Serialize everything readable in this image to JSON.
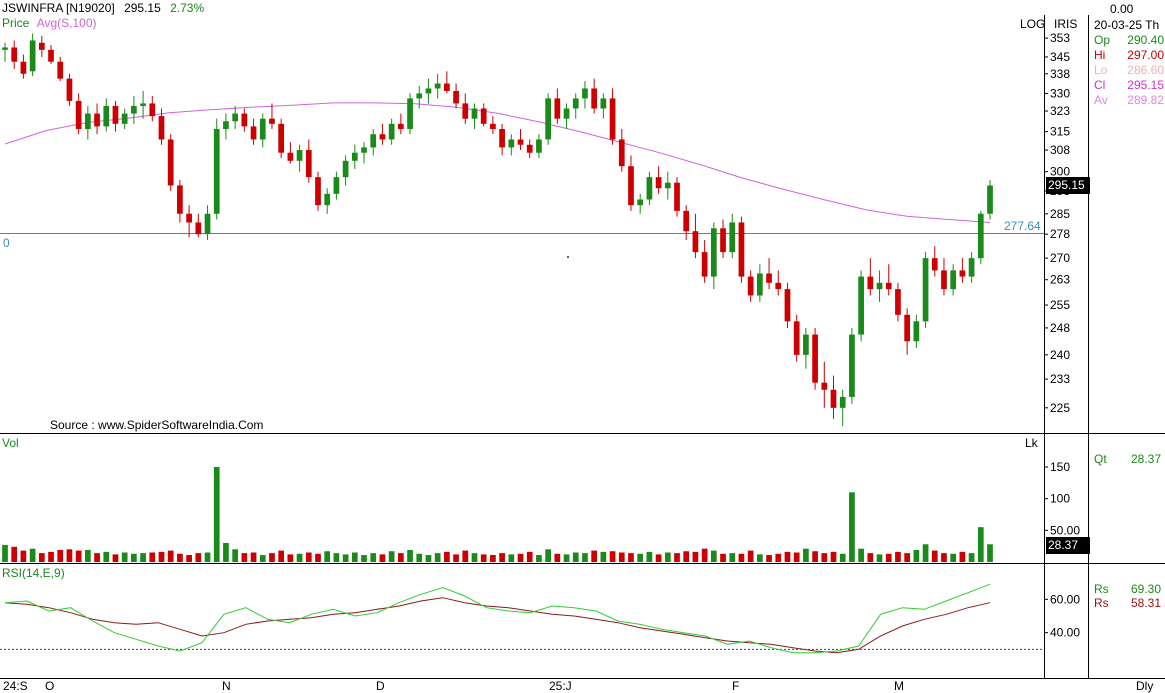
{
  "header": {
    "symbol": "JSWINFRA [N19020]",
    "last": "295.15",
    "change_pct": "2.73%",
    "price_label": "Price",
    "avg_label": "Avg(S,100)",
    "log_label": "LOG",
    "iris_label": "IRIS",
    "source": "Source : www.SpiderSoftwareIndia.Com",
    "zero_label": "0",
    "hline_value": "277.64",
    "price_tag": "295.15"
  },
  "info_panel": {
    "top_value": "0.00",
    "date": "20-03-25 Th",
    "rows": [
      {
        "key": "Op",
        "value": "290.40",
        "color": "#1a8a1a"
      },
      {
        "key": "Hi",
        "value": "297.00",
        "color": "#cc0000"
      },
      {
        "key": "Lo",
        "value": "286.60",
        "color": "#f0b0b0"
      },
      {
        "key": "Cl",
        "value": "295.15",
        "color": "#cc33cc"
      },
      {
        "key": "Av",
        "value": "289.82",
        "color": "#dd88dd"
      }
    ]
  },
  "volume_panel": {
    "label": "Vol",
    "unit": "Lk",
    "qt_label": "Qt",
    "qt_value": "28.37",
    "vol_tag": "28.37"
  },
  "rsi_panel": {
    "label": "RSI(14,E,9)",
    "rs1_label": "Rs",
    "rs1_value": "69.30",
    "rs2_label": "Rs",
    "rs2_value": "58.31"
  },
  "x_axis": {
    "labels": [
      "24:S",
      "O",
      "N",
      "D",
      "25:J",
      "F",
      "M"
    ],
    "period": "Dly"
  },
  "chart_data": {
    "type": "candlestick",
    "price_axis": {
      "scale": "log",
      "ticks": [
        "353",
        "345",
        "338",
        "330",
        "323",
        "315",
        "308",
        "300",
        "293",
        "285",
        "278",
        "270",
        "263",
        "255",
        "248",
        "240",
        "233",
        "225"
      ],
      "ylim": [
        219,
        360
      ]
    },
    "volume_axis": {
      "ticks": [
        "150",
        "100",
        "50.00"
      ],
      "ylim": [
        0,
        180
      ]
    },
    "rsi_axis": {
      "ticks": [
        "60.00",
        "40.00"
      ],
      "ylim": [
        14,
        80
      ],
      "ref_line": 30
    },
    "candles": [
      [
        348,
        351,
        343,
        349,
        27
      ],
      [
        349,
        352,
        340,
        343,
        24
      ],
      [
        343,
        346,
        336,
        338,
        18
      ],
      [
        339,
        355,
        337,
        352,
        21
      ],
      [
        351,
        354,
        345,
        348,
        14
      ],
      [
        348,
        350,
        342,
        343,
        16
      ],
      [
        343,
        345,
        335,
        336,
        19
      ],
      [
        336,
        338,
        325,
        327,
        20
      ],
      [
        327,
        330,
        314,
        316,
        18
      ],
      [
        316,
        325,
        312,
        322,
        19
      ],
      [
        322,
        326,
        314,
        317,
        14
      ],
      [
        317,
        328,
        315,
        325,
        16
      ],
      [
        325,
        327,
        315,
        318,
        12
      ],
      [
        318,
        324,
        316,
        322,
        15
      ],
      [
        322,
        329,
        318,
        325,
        13
      ],
      [
        325,
        331,
        320,
        326,
        14
      ],
      [
        326,
        329,
        319,
        321,
        15
      ],
      [
        321,
        324,
        310,
        312,
        16
      ],
      [
        312,
        314,
        293,
        295,
        18
      ],
      [
        295,
        297,
        282,
        285,
        13
      ],
      [
        285,
        288,
        277,
        282,
        11
      ],
      [
        282,
        285,
        277,
        278,
        14
      ],
      [
        278,
        288,
        276,
        285,
        15
      ],
      [
        285,
        320,
        283,
        316,
        150
      ],
      [
        316,
        322,
        312,
        319,
        30
      ],
      [
        319,
        325,
        316,
        322,
        20
      ],
      [
        322,
        324,
        315,
        317,
        14
      ],
      [
        317,
        320,
        310,
        312,
        15
      ],
      [
        312,
        322,
        309,
        320,
        11
      ],
      [
        320,
        326,
        316,
        318,
        14
      ],
      [
        318,
        320,
        305,
        307,
        18
      ],
      [
        307,
        311,
        303,
        304,
        12
      ],
      [
        304,
        310,
        300,
        308,
        13
      ],
      [
        308,
        312,
        296,
        298,
        15
      ],
      [
        298,
        300,
        286,
        288,
        13
      ],
      [
        288,
        294,
        285,
        292,
        17
      ],
      [
        292,
        300,
        290,
        298,
        14
      ],
      [
        298,
        306,
        295,
        304,
        12
      ],
      [
        304,
        310,
        301,
        307,
        15
      ],
      [
        307,
        311,
        303,
        309,
        11
      ],
      [
        309,
        316,
        306,
        314,
        14
      ],
      [
        314,
        318,
        310,
        312,
        12
      ],
      [
        312,
        320,
        310,
        318,
        17
      ],
      [
        318,
        322,
        314,
        316,
        14
      ],
      [
        316,
        330,
        314,
        328,
        19
      ],
      [
        328,
        333,
        324,
        330,
        13
      ],
      [
        330,
        336,
        326,
        332,
        11
      ],
      [
        332,
        338,
        328,
        334,
        14
      ],
      [
        334,
        339,
        330,
        331,
        16
      ],
      [
        331,
        334,
        324,
        326,
        12
      ],
      [
        326,
        330,
        318,
        320,
        18
      ],
      [
        320,
        326,
        316,
        324,
        14
      ],
      [
        324,
        326,
        317,
        318,
        12
      ],
      [
        318,
        321,
        314,
        316,
        11
      ],
      [
        316,
        318,
        306,
        309,
        14
      ],
      [
        309,
        314,
        306,
        312,
        12
      ],
      [
        312,
        316,
        308,
        310,
        13
      ],
      [
        310,
        312,
        305,
        307,
        16
      ],
      [
        307,
        314,
        305,
        312,
        11
      ],
      [
        312,
        330,
        310,
        328,
        20
      ],
      [
        328,
        332,
        318,
        320,
        13
      ],
      [
        320,
        326,
        316,
        324,
        12
      ],
      [
        324,
        330,
        320,
        328,
        15
      ],
      [
        328,
        335,
        324,
        332,
        14
      ],
      [
        332,
        336,
        322,
        324,
        18
      ],
      [
        324,
        330,
        320,
        328,
        16
      ],
      [
        328,
        332,
        310,
        312,
        17
      ],
      [
        312,
        316,
        300,
        302,
        15
      ],
      [
        302,
        306,
        286,
        288,
        14
      ],
      [
        288,
        292,
        285,
        290,
        13
      ],
      [
        290,
        300,
        288,
        298,
        16
      ],
      [
        298,
        302,
        292,
        294,
        12
      ],
      [
        294,
        300,
        290,
        296,
        15
      ],
      [
        296,
        298,
        284,
        286,
        14
      ],
      [
        286,
        288,
        276,
        279,
        17
      ],
      [
        279,
        285,
        270,
        272,
        16
      ],
      [
        272,
        276,
        262,
        264,
        21
      ],
      [
        264,
        282,
        260,
        280,
        18
      ],
      [
        280,
        283,
        270,
        272,
        13
      ],
      [
        272,
        285,
        270,
        282,
        14
      ],
      [
        282,
        284,
        262,
        264,
        13
      ],
      [
        264,
        266,
        256,
        258,
        18
      ],
      [
        258,
        268,
        256,
        265,
        12
      ],
      [
        265,
        270,
        260,
        262,
        11
      ],
      [
        262,
        266,
        258,
        260,
        13
      ],
      [
        260,
        262,
        248,
        250,
        16
      ],
      [
        250,
        252,
        238,
        240,
        15
      ],
      [
        240,
        248,
        236,
        246,
        21
      ],
      [
        246,
        248,
        230,
        232,
        17
      ],
      [
        232,
        238,
        225,
        230,
        14
      ],
      [
        230,
        234,
        222,
        225,
        16
      ],
      [
        225,
        230,
        220,
        228,
        13
      ],
      [
        228,
        248,
        226,
        246,
        110
      ],
      [
        246,
        266,
        244,
        264,
        21
      ],
      [
        264,
        270,
        258,
        260,
        14
      ],
      [
        260,
        266,
        256,
        262,
        12
      ],
      [
        262,
        268,
        258,
        260,
        13
      ],
      [
        260,
        262,
        250,
        252,
        16
      ],
      [
        252,
        254,
        240,
        244,
        14
      ],
      [
        244,
        252,
        242,
        250,
        19
      ],
      [
        250,
        272,
        248,
        270,
        28
      ],
      [
        270,
        274,
        264,
        266,
        18
      ],
      [
        266,
        270,
        258,
        260,
        14
      ],
      [
        260,
        268,
        258,
        266,
        13
      ],
      [
        266,
        270,
        262,
        264,
        16
      ],
      [
        264,
        272,
        262,
        270,
        14
      ],
      [
        270,
        286,
        268,
        285,
        55
      ],
      [
        285,
        297,
        283,
        295,
        28
      ]
    ],
    "ma100": [
      310.3,
      315.4,
      318.5,
      320.2,
      322.3,
      323.5,
      324.5,
      325.3,
      326.2,
      326.2,
      325.9,
      324.5,
      322.1,
      318.8,
      315.0,
      310.9,
      306.8,
      302.3,
      297.5,
      293.5,
      289.8,
      286.3,
      284.1,
      283.0,
      282.0
    ],
    "rsi": [
      58,
      59,
      53,
      55,
      47,
      40,
      36,
      32,
      29,
      34,
      51,
      55,
      48,
      46,
      51,
      54,
      50,
      52,
      58,
      63,
      67,
      62,
      55,
      53,
      52,
      56,
      55,
      53,
      47,
      45,
      42,
      40,
      38,
      33,
      35,
      31,
      28,
      28,
      29,
      32,
      51,
      55,
      54,
      59,
      64,
      69
    ],
    "rsi_signal": [
      58,
      57,
      55,
      52,
      48,
      46,
      45,
      46,
      42,
      38,
      40,
      45,
      47,
      48,
      49,
      51,
      52,
      54,
      56,
      59,
      61,
      58,
      56,
      55,
      53,
      51,
      50,
      48,
      46,
      43,
      41,
      39,
      37,
      35,
      34,
      33,
      31,
      29,
      28,
      30,
      38,
      44,
      48,
      51,
      55,
      58
    ]
  }
}
